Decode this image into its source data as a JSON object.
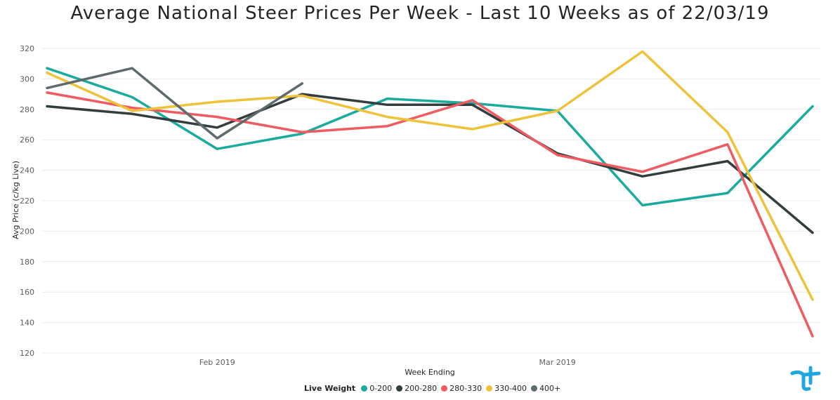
{
  "chart_data": {
    "type": "line",
    "title": "Average National Steer Prices Per Week - Last 10 Weeks as of 22/03/19",
    "xlabel": "Week Ending",
    "ylabel": "Avg Price (c/kg Live)",
    "ylim": [
      120,
      320
    ],
    "yticks": [
      120,
      140,
      160,
      180,
      200,
      220,
      240,
      260,
      280,
      300,
      320
    ],
    "xticks": [
      {
        "label": "Feb 2019",
        "week": 2
      },
      {
        "label": "Mar 2019",
        "week": 6
      }
    ],
    "n_points": 10,
    "grid": true,
    "legend_title": "Live Weight",
    "legend_position": "bottom",
    "series": [
      {
        "name": "0-200",
        "color": "#1AAB9F",
        "values": [
          307,
          288,
          254,
          264,
          287,
          284,
          279,
          217,
          225,
          282
        ]
      },
      {
        "name": "200-280",
        "color": "#333D3E",
        "values": [
          282,
          277,
          268,
          290,
          283,
          283,
          251,
          236,
          246,
          199
        ]
      },
      {
        "name": "280-330",
        "color": "#F05B61",
        "values": [
          291,
          281,
          275,
          265,
          269,
          286,
          250,
          239,
          257,
          131
        ]
      },
      {
        "name": "330-400",
        "color": "#EFC23B",
        "values": [
          304,
          279,
          285,
          289,
          275,
          267,
          279,
          318,
          265,
          155
        ]
      },
      {
        "name": "400+",
        "color": "#5E6B6D",
        "values": [
          294,
          307,
          261,
          297,
          null,
          null,
          null,
          null,
          null,
          null
        ]
      }
    ]
  },
  "logo": {
    "name": "brand-logo",
    "color": "#1FA8E0"
  }
}
